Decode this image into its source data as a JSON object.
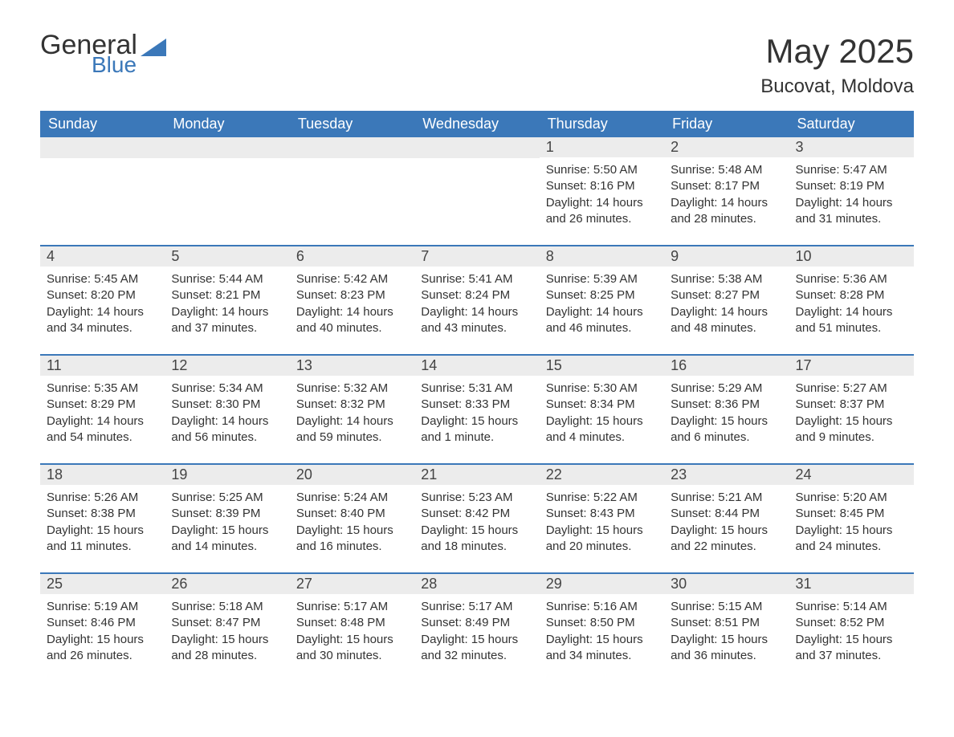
{
  "brand": {
    "general": "General",
    "blue": "Blue",
    "accent_color": "#3b78b9"
  },
  "title": "May 2025",
  "location": "Bucovat, Moldova",
  "colors": {
    "header_bg": "#3b78b9",
    "header_text": "#ffffff",
    "daynum_bg": "#ececec",
    "text": "#333333",
    "row_border": "#3b78b9",
    "background": "#ffffff"
  },
  "typography": {
    "title_fontsize": 42,
    "location_fontsize": 24,
    "weekday_fontsize": 18,
    "daynum_fontsize": 18,
    "body_fontsize": 15
  },
  "weekdays": [
    "Sunday",
    "Monday",
    "Tuesday",
    "Wednesday",
    "Thursday",
    "Friday",
    "Saturday"
  ],
  "weeks": [
    [
      null,
      null,
      null,
      null,
      {
        "day": "1",
        "sunrise": "5:50 AM",
        "sunset": "8:16 PM",
        "daylight": "14 hours and 26 minutes."
      },
      {
        "day": "2",
        "sunrise": "5:48 AM",
        "sunset": "8:17 PM",
        "daylight": "14 hours and 28 minutes."
      },
      {
        "day": "3",
        "sunrise": "5:47 AM",
        "sunset": "8:19 PM",
        "daylight": "14 hours and 31 minutes."
      }
    ],
    [
      {
        "day": "4",
        "sunrise": "5:45 AM",
        "sunset": "8:20 PM",
        "daylight": "14 hours and 34 minutes."
      },
      {
        "day": "5",
        "sunrise": "5:44 AM",
        "sunset": "8:21 PM",
        "daylight": "14 hours and 37 minutes."
      },
      {
        "day": "6",
        "sunrise": "5:42 AM",
        "sunset": "8:23 PM",
        "daylight": "14 hours and 40 minutes."
      },
      {
        "day": "7",
        "sunrise": "5:41 AM",
        "sunset": "8:24 PM",
        "daylight": "14 hours and 43 minutes."
      },
      {
        "day": "8",
        "sunrise": "5:39 AM",
        "sunset": "8:25 PM",
        "daylight": "14 hours and 46 minutes."
      },
      {
        "day": "9",
        "sunrise": "5:38 AM",
        "sunset": "8:27 PM",
        "daylight": "14 hours and 48 minutes."
      },
      {
        "day": "10",
        "sunrise": "5:36 AM",
        "sunset": "8:28 PM",
        "daylight": "14 hours and 51 minutes."
      }
    ],
    [
      {
        "day": "11",
        "sunrise": "5:35 AM",
        "sunset": "8:29 PM",
        "daylight": "14 hours and 54 minutes."
      },
      {
        "day": "12",
        "sunrise": "5:34 AM",
        "sunset": "8:30 PM",
        "daylight": "14 hours and 56 minutes."
      },
      {
        "day": "13",
        "sunrise": "5:32 AM",
        "sunset": "8:32 PM",
        "daylight": "14 hours and 59 minutes."
      },
      {
        "day": "14",
        "sunrise": "5:31 AM",
        "sunset": "8:33 PM",
        "daylight": "15 hours and 1 minute."
      },
      {
        "day": "15",
        "sunrise": "5:30 AM",
        "sunset": "8:34 PM",
        "daylight": "15 hours and 4 minutes."
      },
      {
        "day": "16",
        "sunrise": "5:29 AM",
        "sunset": "8:36 PM",
        "daylight": "15 hours and 6 minutes."
      },
      {
        "day": "17",
        "sunrise": "5:27 AM",
        "sunset": "8:37 PM",
        "daylight": "15 hours and 9 minutes."
      }
    ],
    [
      {
        "day": "18",
        "sunrise": "5:26 AM",
        "sunset": "8:38 PM",
        "daylight": "15 hours and 11 minutes."
      },
      {
        "day": "19",
        "sunrise": "5:25 AM",
        "sunset": "8:39 PM",
        "daylight": "15 hours and 14 minutes."
      },
      {
        "day": "20",
        "sunrise": "5:24 AM",
        "sunset": "8:40 PM",
        "daylight": "15 hours and 16 minutes."
      },
      {
        "day": "21",
        "sunrise": "5:23 AM",
        "sunset": "8:42 PM",
        "daylight": "15 hours and 18 minutes."
      },
      {
        "day": "22",
        "sunrise": "5:22 AM",
        "sunset": "8:43 PM",
        "daylight": "15 hours and 20 minutes."
      },
      {
        "day": "23",
        "sunrise": "5:21 AM",
        "sunset": "8:44 PM",
        "daylight": "15 hours and 22 minutes."
      },
      {
        "day": "24",
        "sunrise": "5:20 AM",
        "sunset": "8:45 PM",
        "daylight": "15 hours and 24 minutes."
      }
    ],
    [
      {
        "day": "25",
        "sunrise": "5:19 AM",
        "sunset": "8:46 PM",
        "daylight": "15 hours and 26 minutes."
      },
      {
        "day": "26",
        "sunrise": "5:18 AM",
        "sunset": "8:47 PM",
        "daylight": "15 hours and 28 minutes."
      },
      {
        "day": "27",
        "sunrise": "5:17 AM",
        "sunset": "8:48 PM",
        "daylight": "15 hours and 30 minutes."
      },
      {
        "day": "28",
        "sunrise": "5:17 AM",
        "sunset": "8:49 PM",
        "daylight": "15 hours and 32 minutes."
      },
      {
        "day": "29",
        "sunrise": "5:16 AM",
        "sunset": "8:50 PM",
        "daylight": "15 hours and 34 minutes."
      },
      {
        "day": "30",
        "sunrise": "5:15 AM",
        "sunset": "8:51 PM",
        "daylight": "15 hours and 36 minutes."
      },
      {
        "day": "31",
        "sunrise": "5:14 AM",
        "sunset": "8:52 PM",
        "daylight": "15 hours and 37 minutes."
      }
    ]
  ]
}
